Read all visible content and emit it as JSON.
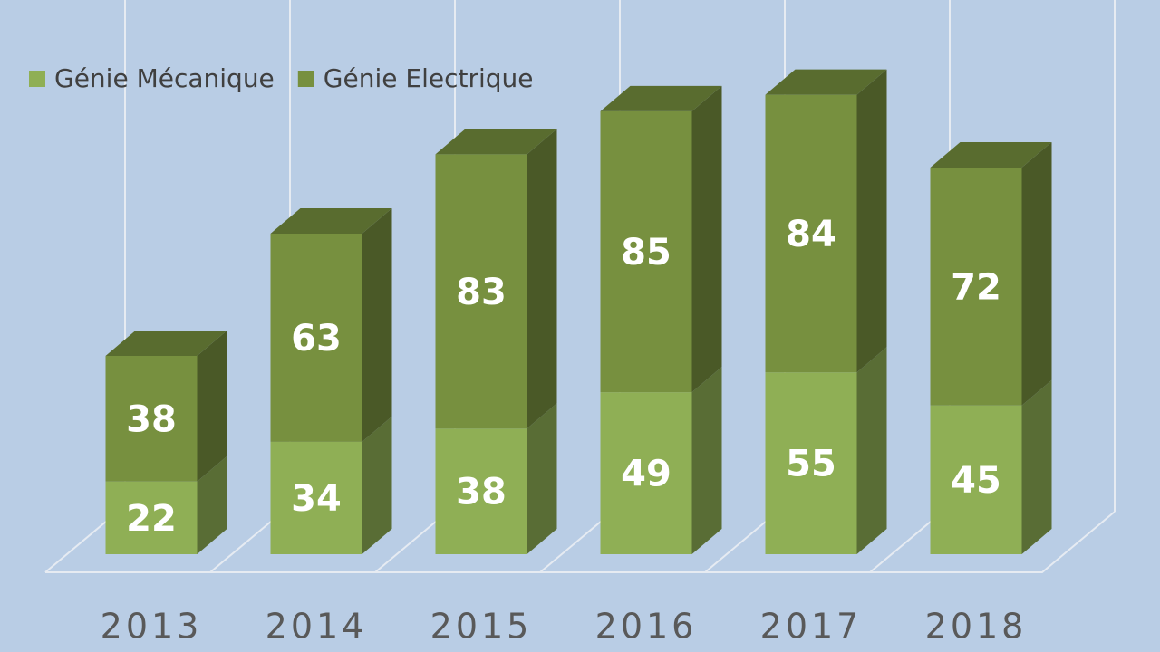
{
  "chart_data": {
    "type": "bar3d-stacked",
    "categories": [
      "2013",
      "2014",
      "2015",
      "2016",
      "2017",
      "2018"
    ],
    "series": [
      {
        "name": "Génie Mécanique",
        "color": "#8faf55",
        "values": [
          22,
          34,
          38,
          49,
          55,
          45
        ]
      },
      {
        "name": "Génie Electrique",
        "color": "#77903f",
        "values": [
          38,
          63,
          83,
          85,
          84,
          72
        ]
      }
    ],
    "legend": "top-left"
  }
}
